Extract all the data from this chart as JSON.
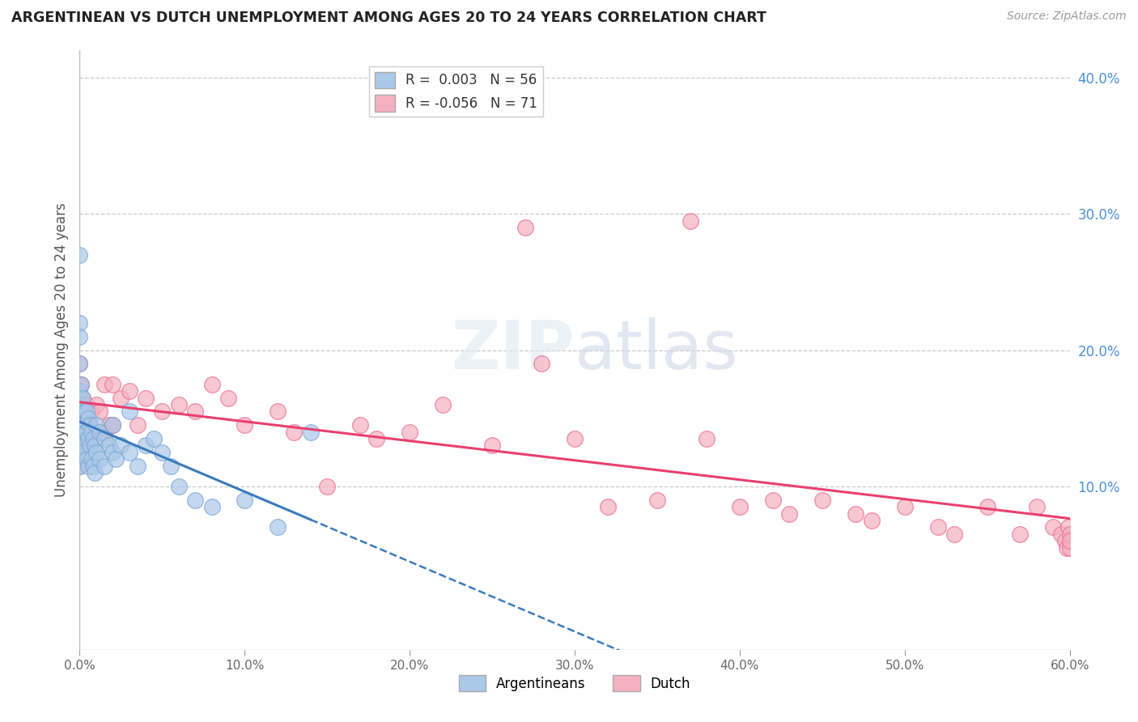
{
  "title": "ARGENTINEAN VS DUTCH UNEMPLOYMENT AMONG AGES 20 TO 24 YEARS CORRELATION CHART",
  "source": "Source: ZipAtlas.com",
  "ylabel": "Unemployment Among Ages 20 to 24 years",
  "xlim": [
    0.0,
    0.6
  ],
  "ylim": [
    -0.02,
    0.42
  ],
  "xticks": [
    0.0,
    0.1,
    0.2,
    0.3,
    0.4,
    0.5,
    0.6
  ],
  "xtick_labels": [
    "0.0%",
    "10.0%",
    "20.0%",
    "30.0%",
    "40.0%",
    "50.0%",
    "60.0%"
  ],
  "yticks_right": [
    0.1,
    0.2,
    0.3,
    0.4
  ],
  "ytick_labels_right": [
    "10.0%",
    "20.0%",
    "30.0%",
    "40.0%"
  ],
  "grid_color": "#c8c8c8",
  "bg_color": "#ffffff",
  "argentinean_color": "#aac8e8",
  "dutch_color": "#f5b0c0",
  "argentinean_edge": "#7aa8d4",
  "dutch_edge": "#e87090",
  "regression_argentina_color": "#3a7abd",
  "regression_dutch_color": "#e84070",
  "legend_argentina_label": "R =  0.003   N = 56",
  "legend_dutch_label": "R = -0.056   N = 71",
  "argentinean_x": [
    0.0,
    0.0,
    0.0,
    0.0,
    0.0,
    0.0,
    0.0,
    0.0,
    0.0,
    0.0,
    0.001,
    0.001,
    0.001,
    0.002,
    0.002,
    0.002,
    0.003,
    0.003,
    0.004,
    0.004,
    0.004,
    0.005,
    0.005,
    0.005,
    0.006,
    0.006,
    0.007,
    0.007,
    0.008,
    0.008,
    0.009,
    0.009,
    0.01,
    0.01,
    0.012,
    0.012,
    0.015,
    0.015,
    0.018,
    0.02,
    0.02,
    0.022,
    0.025,
    0.03,
    0.03,
    0.035,
    0.04,
    0.045,
    0.05,
    0.055,
    0.06,
    0.07,
    0.08,
    0.1,
    0.12,
    0.14
  ],
  "argentinean_y": [
    0.27,
    0.22,
    0.21,
    0.19,
    0.17,
    0.16,
    0.145,
    0.135,
    0.125,
    0.115,
    0.175,
    0.155,
    0.13,
    0.165,
    0.145,
    0.125,
    0.155,
    0.14,
    0.155,
    0.14,
    0.12,
    0.15,
    0.135,
    0.115,
    0.145,
    0.13,
    0.14,
    0.12,
    0.135,
    0.115,
    0.13,
    0.11,
    0.145,
    0.125,
    0.14,
    0.12,
    0.135,
    0.115,
    0.13,
    0.145,
    0.125,
    0.12,
    0.13,
    0.155,
    0.125,
    0.115,
    0.13,
    0.135,
    0.125,
    0.115,
    0.1,
    0.09,
    0.085,
    0.09,
    0.07,
    0.14
  ],
  "dutch_x": [
    0.0,
    0.0,
    0.0,
    0.0,
    0.0,
    0.0,
    0.001,
    0.001,
    0.002,
    0.002,
    0.003,
    0.003,
    0.004,
    0.005,
    0.005,
    0.006,
    0.007,
    0.008,
    0.009,
    0.01,
    0.012,
    0.015,
    0.015,
    0.018,
    0.02,
    0.02,
    0.025,
    0.03,
    0.035,
    0.04,
    0.05,
    0.06,
    0.07,
    0.08,
    0.09,
    0.1,
    0.12,
    0.13,
    0.15,
    0.17,
    0.18,
    0.2,
    0.22,
    0.25,
    0.27,
    0.28,
    0.3,
    0.32,
    0.35,
    0.37,
    0.38,
    0.4,
    0.42,
    0.43,
    0.45,
    0.47,
    0.48,
    0.5,
    0.52,
    0.53,
    0.55,
    0.57,
    0.58,
    0.59,
    0.595,
    0.597,
    0.598,
    0.599,
    0.6,
    0.6,
    0.6
  ],
  "dutch_y": [
    0.19,
    0.175,
    0.16,
    0.145,
    0.13,
    0.115,
    0.175,
    0.155,
    0.165,
    0.145,
    0.155,
    0.135,
    0.16,
    0.155,
    0.13,
    0.145,
    0.155,
    0.14,
    0.135,
    0.16,
    0.155,
    0.175,
    0.14,
    0.145,
    0.175,
    0.145,
    0.165,
    0.17,
    0.145,
    0.165,
    0.155,
    0.16,
    0.155,
    0.175,
    0.165,
    0.145,
    0.155,
    0.14,
    0.1,
    0.145,
    0.135,
    0.14,
    0.16,
    0.13,
    0.29,
    0.19,
    0.135,
    0.085,
    0.09,
    0.295,
    0.135,
    0.085,
    0.09,
    0.08,
    0.09,
    0.08,
    0.075,
    0.085,
    0.07,
    0.065,
    0.085,
    0.065,
    0.085,
    0.07,
    0.065,
    0.06,
    0.055,
    0.07,
    0.055,
    0.065,
    0.06
  ]
}
